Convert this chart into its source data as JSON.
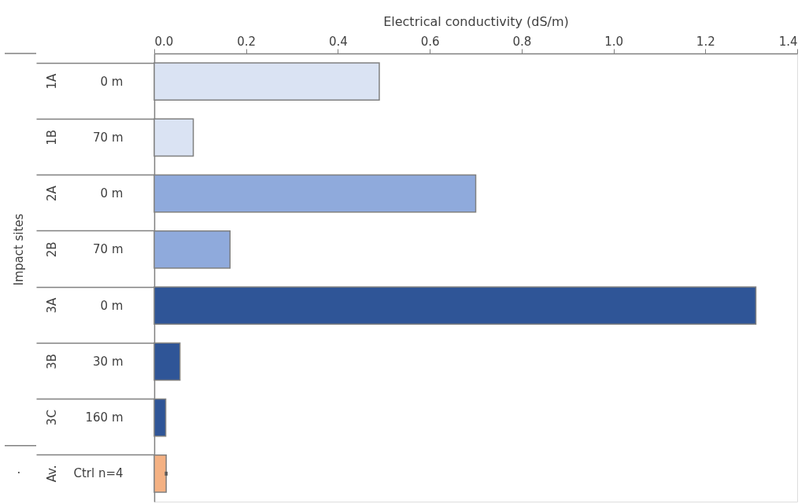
{
  "chart_data": {
    "type": "bar",
    "orientation": "horizontal",
    "xlabel": "Electrical conductivity (dS/m)",
    "ylabel": "Impact sites",
    "categories": [
      "0 m",
      "70 m",
      "0 m",
      "70 m",
      "0 m",
      "30 m",
      "160 m",
      "Ctrl n=4"
    ],
    "values": [
      0.49,
      0.085,
      0.7,
      0.165,
      1.31,
      0.056,
      0.025,
      0.026
    ],
    "colors": [
      "#dae3f3",
      "#dae3f3",
      "#8faadc",
      "#8faadc",
      "#2f5597",
      "#2f5597",
      "#2f5597",
      "#f4b183"
    ],
    "errors": [
      null,
      null,
      null,
      null,
      null,
      null,
      null,
      0.003
    ],
    "xlim": [
      0,
      1.4
    ],
    "xticks": [
      {
        "value": 0,
        "label": "0.0"
      },
      {
        "value": 0.2,
        "label": "0.2"
      },
      {
        "value": 0.4,
        "label": "0.4"
      },
      {
        "value": 0.6,
        "label": "0.6"
      },
      {
        "value": 0.8,
        "label": "0.8"
      },
      {
        "value": 1.0,
        "label": "1.0"
      },
      {
        "value": 1.2,
        "label": "1.2"
      },
      {
        "value": 1.4,
        "label": "1.4"
      }
    ],
    "annotations": [
      "1A",
      "1B",
      "2A",
      "2B",
      "3A",
      "3B",
      "3C",
      "Av.",
      "·"
    ],
    "grid": false
  }
}
